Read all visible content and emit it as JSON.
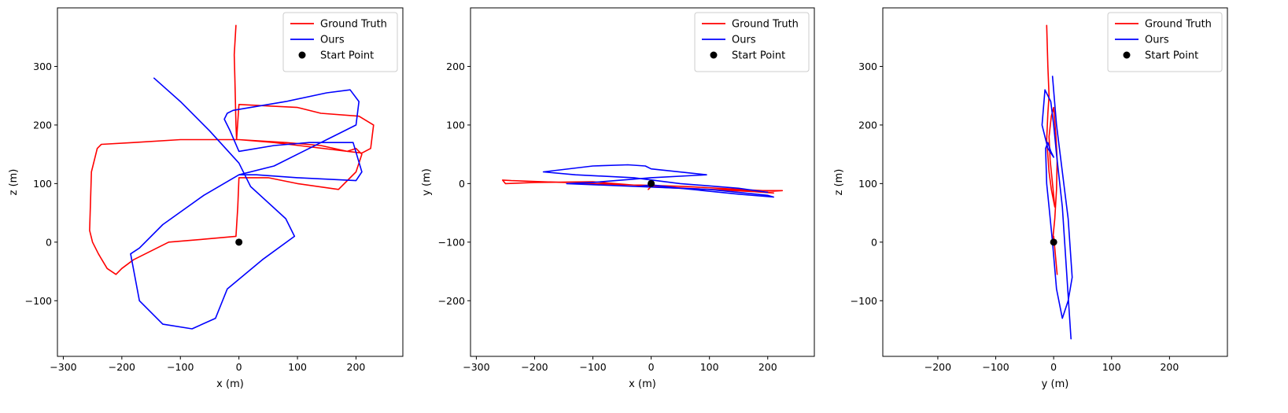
{
  "chart_data": [
    {
      "type": "line",
      "xlabel": "x (m)",
      "ylabel": "z (m)",
      "xlim": [
        -310,
        280
      ],
      "ylim": [
        -195,
        400
      ],
      "xticks": [
        -300,
        -200,
        -100,
        0,
        100,
        200
      ],
      "xtick_labels": [
        "−300",
        "−200",
        "−100",
        "0",
        "100",
        "200"
      ],
      "yticks": [
        -100,
        0,
        100,
        200,
        300
      ],
      "ytick_labels": [
        "−100",
        "0",
        "100",
        "200",
        "300"
      ],
      "legend": "top-right",
      "grid": false,
      "series": [
        {
          "name": "Ground Truth",
          "color": "#ff0000",
          "x": [
            -5,
            -8,
            -7,
            -6,
            -5,
            -4,
            0,
            100,
            140,
            205,
            230,
            225,
            210,
            60,
            0,
            -100,
            -180,
            -235,
            -242,
            -252,
            -255,
            -250,
            -240,
            -225,
            -210,
            -200,
            -180,
            -120,
            -60,
            -5,
            -2,
            0,
            50,
            100,
            170,
            200,
            210,
            200,
            185,
            140,
            80,
            0
          ],
          "y": [
            370,
            320,
            280,
            240,
            200,
            175,
            235,
            230,
            220,
            215,
            200,
            160,
            152,
            170,
            175,
            175,
            170,
            167,
            160,
            120,
            20,
            0,
            -20,
            -45,
            -55,
            -45,
            -30,
            0,
            5,
            10,
            60,
            110,
            110,
            100,
            90,
            120,
            150,
            160,
            155,
            165,
            170,
            175
          ]
        },
        {
          "name": "Ours",
          "color": "#0000ff",
          "x": [
            -145,
            -100,
            -50,
            0,
            20,
            80,
            95,
            40,
            -20,
            -40,
            -80,
            -130,
            -170,
            -185,
            -170,
            -130,
            -60,
            0,
            30,
            100,
            200,
            210,
            195,
            120,
            60,
            0,
            -15,
            -25,
            -20,
            -10,
            20,
            80,
            150,
            190,
            205,
            200,
            180,
            150,
            120,
            60,
            0
          ],
          "y": [
            280,
            240,
            190,
            135,
            95,
            40,
            10,
            -30,
            -80,
            -130,
            -148,
            -140,
            -100,
            -20,
            -10,
            30,
            80,
            115,
            115,
            110,
            105,
            120,
            170,
            170,
            165,
            155,
            190,
            210,
            220,
            225,
            230,
            240,
            255,
            260,
            240,
            200,
            190,
            175,
            160,
            130,
            115
          ]
        },
        {
          "name": "Start Point",
          "color": "#000000",
          "marker": "o",
          "x": [
            0
          ],
          "y": [
            0
          ]
        }
      ]
    },
    {
      "type": "line",
      "xlabel": "x (m)",
      "ylabel": "y (m)",
      "xlim": [
        -310,
        280
      ],
      "ylim": [
        -295,
        300
      ],
      "xticks": [
        -300,
        -200,
        -100,
        0,
        100,
        200
      ],
      "xtick_labels": [
        "−300",
        "−200",
        "−100",
        "0",
        "100",
        "200"
      ],
      "yticks": [
        -200,
        -100,
        0,
        100,
        200
      ],
      "ytick_labels": [
        "−200",
        "−100",
        "0",
        "100",
        "200"
      ],
      "legend": "top-right",
      "grid": false,
      "series": [
        {
          "name": "Ground Truth",
          "color": "#ff0000",
          "x": [
            -5,
            0,
            100,
            200,
            225,
            210,
            60,
            -100,
            -240,
            -255,
            -250,
            -200,
            -100,
            0,
            100,
            200,
            210,
            150,
            50,
            -10
          ],
          "y": [
            -10,
            -5,
            -10,
            -12,
            -12,
            -13,
            -5,
            0,
            5,
            6,
            0,
            2,
            3,
            -5,
            -10,
            -15,
            -16,
            -12,
            -8,
            -5
          ]
        },
        {
          "name": "Ours",
          "color": "#0000ff",
          "x": [
            -20,
            0,
            50,
            100,
            200,
            210,
            150,
            50,
            -145,
            -100,
            0,
            95,
            0,
            -10,
            -40,
            -100,
            -185,
            -130,
            -30,
            50,
            150,
            200
          ],
          "y": [
            -5,
            -2,
            -8,
            -10,
            -20,
            -23,
            -18,
            -8,
            0,
            2,
            10,
            15,
            25,
            30,
            32,
            30,
            20,
            15,
            10,
            0,
            -8,
            -15
          ]
        },
        {
          "name": "Start Point",
          "color": "#000000",
          "marker": "o",
          "x": [
            0
          ],
          "y": [
            0
          ]
        }
      ]
    },
    {
      "type": "line",
      "xlabel": "y (m)",
      "ylabel": "z (m)",
      "xlim": [
        -295,
        300
      ],
      "ylim": [
        -195,
        400
      ],
      "xticks": [
        -200,
        -100,
        0,
        100,
        200
      ],
      "xtick_labels": [
        "−200",
        "−100",
        "0",
        "100",
        "200"
      ],
      "yticks": [
        -100,
        0,
        100,
        200,
        300
      ],
      "ytick_labels": [
        "−100",
        "0",
        "100",
        "200",
        "300"
      ],
      "legend": "top-right",
      "grid": false,
      "series": [
        {
          "name": "Ground Truth",
          "color": "#ff0000",
          "x": [
            -12,
            -10,
            -8,
            -10,
            -12,
            -8,
            -4,
            2,
            -2,
            -6,
            -8,
            -4,
            0,
            4,
            6,
            5,
            2,
            -2,
            0,
            6
          ],
          "y": [
            370,
            300,
            250,
            220,
            175,
            120,
            90,
            60,
            100,
            140,
            180,
            215,
            230,
            180,
            140,
            90,
            40,
            0,
            10,
            -55
          ]
        },
        {
          "name": "Ours",
          "color": "#0000ff",
          "x": [
            -2,
            5,
            15,
            25,
            32,
            25,
            15,
            5,
            -2,
            -8,
            -12,
            -14,
            -10,
            -5,
            0,
            -10,
            -20,
            -15,
            -5,
            0,
            5,
            15,
            30
          ],
          "y": [
            283,
            200,
            120,
            40,
            -60,
            -100,
            -130,
            -80,
            0,
            60,
            100,
            160,
            170,
            155,
            145,
            160,
            200,
            260,
            240,
            200,
            150,
            60,
            -165
          ]
        },
        {
          "name": "Start Point",
          "color": "#000000",
          "marker": "o",
          "x": [
            0
          ],
          "y": [
            0
          ]
        }
      ]
    }
  ]
}
